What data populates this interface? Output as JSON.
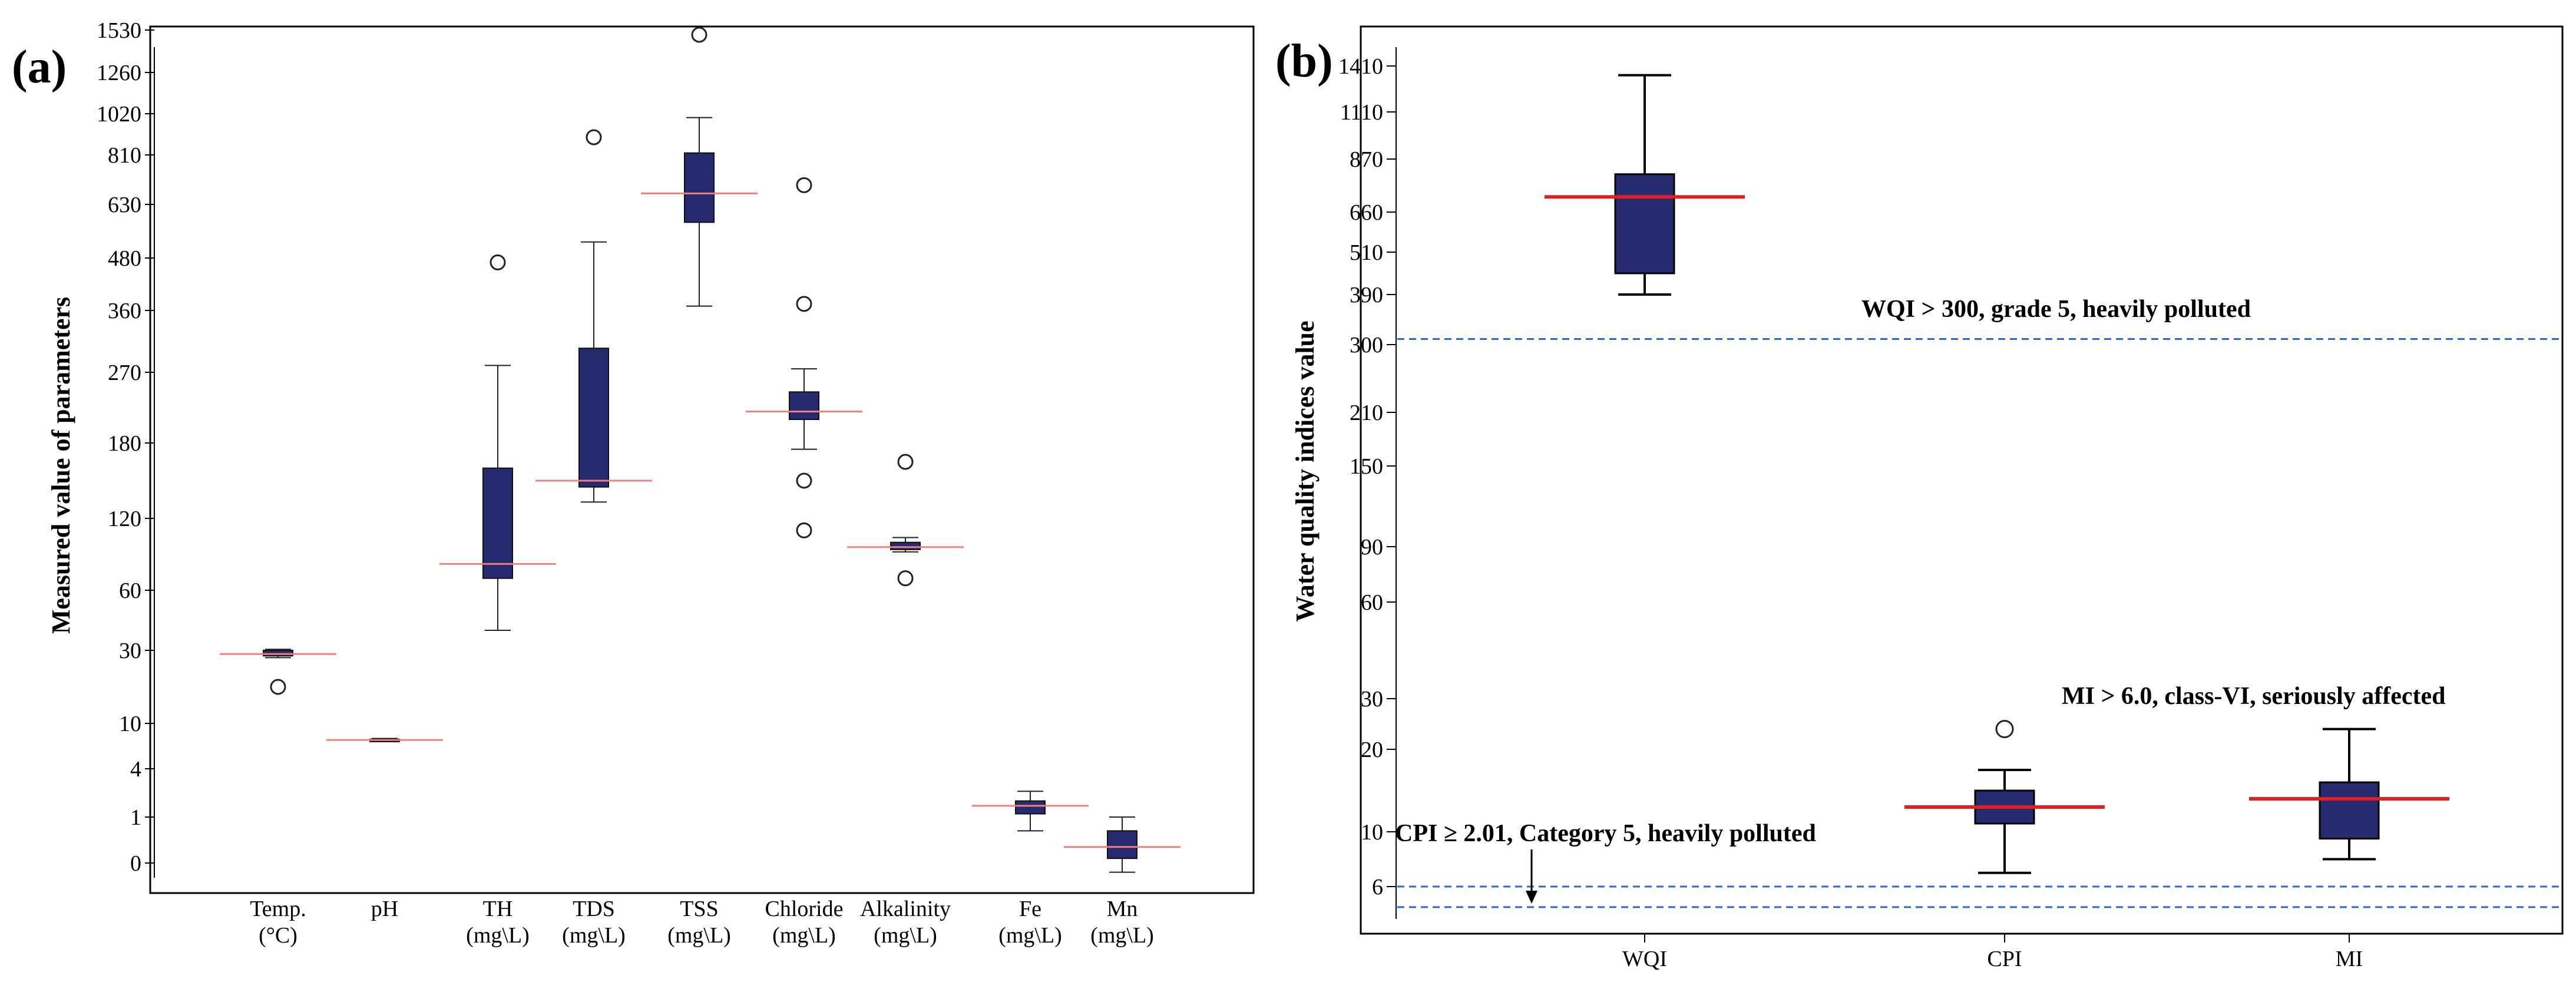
{
  "chart_data": [
    {
      "panel_label": "(a)",
      "type": "box",
      "ylabel": "Measured value of parameters",
      "y_ticks": [
        "0",
        "1",
        "4",
        "10",
        "30",
        "60",
        "120",
        "180",
        "270",
        "360",
        "480",
        "630",
        "810",
        "1020",
        "1260",
        "1530"
      ],
      "categories": [
        {
          "name": "Temp.",
          "unit": "(°C)",
          "min": 28,
          "q1": 28.5,
          "median": 29,
          "q3": 30,
          "max": 30.5,
          "outliers": [
            20
          ]
        },
        {
          "name": "pH",
          "unit": "",
          "min": 7.6,
          "q1": 7.7,
          "median": 7.8,
          "q3": 7.9,
          "max": 8.0,
          "outliers": []
        },
        {
          "name": "TH",
          "unit": "(mg\\L)",
          "min": 40,
          "q1": 70,
          "median": 82,
          "q3": 160,
          "max": 280,
          "outliers": [
            470
          ]
        },
        {
          "name": "TDS",
          "unit": "(mg\\L)",
          "min": 133,
          "q1": 145,
          "median": 150,
          "q3": 305,
          "max": 525,
          "outliers": [
            900
          ]
        },
        {
          "name": "TSS",
          "unit": "(mg\\L)",
          "min": 370,
          "q1": 580,
          "median": 670,
          "q3": 820,
          "max": 1000,
          "outliers": [
            1500
          ]
        },
        {
          "name": "Chloride",
          "unit": "(mg\\L)",
          "min": 175,
          "q1": 210,
          "median": 220,
          "q3": 245,
          "max": 275,
          "outliers": [
            110,
            150,
            375,
            700
          ]
        },
        {
          "name": "Alkalinity",
          "unit": "(mg\\L)",
          "min": 92,
          "q1": 94,
          "median": 96,
          "q3": 100,
          "max": 104,
          "outliers": [
            70,
            165
          ]
        },
        {
          "name": "Fe",
          "unit": "(mg\\L)",
          "min": 0.7,
          "q1": 1.2,
          "median": 1.7,
          "q3": 2.0,
          "max": 2.6,
          "outliers": []
        },
        {
          "name": "Mn",
          "unit": "(mg\\L)",
          "min": -0.2,
          "q1": 0.1,
          "median": 0.35,
          "q3": 0.7,
          "max": 1.0,
          "outliers": []
        }
      ]
    },
    {
      "panel_label": "(b)",
      "type": "box",
      "ylabel": "Water quality indices value",
      "y_ticks": [
        "6",
        "10",
        "20",
        "30",
        "60",
        "90",
        "150",
        "210",
        "300",
        "390",
        "510",
        "660",
        "870",
        "1110",
        "1410"
      ],
      "categories": [
        {
          "name": "WQI",
          "min": 390,
          "q1": 450,
          "median": 720,
          "q3": 810,
          "max": 1350,
          "outliers": []
        },
        {
          "name": "CPI",
          "min": 7,
          "q1": 11,
          "median": 13,
          "q3": 15,
          "max": 17.5,
          "outliers": [
            24
          ]
        },
        {
          "name": "MI",
          "min": 8,
          "q1": 9.5,
          "median": 14,
          "q3": 16,
          "max": 24,
          "outliers": []
        }
      ],
      "reference_lines": [
        {
          "value": 310,
          "label": "WQI > 300, grade 5, heavily polluted"
        },
        {
          "value": 6,
          "label": ""
        },
        {
          "value": 4.5,
          "label": ""
        }
      ],
      "annotations": [
        "WQI > 300, grade 5, heavily polluted",
        "MI > 6.0, class-VI, seriously affected",
        "CPI ≥ 2.01, Category 5, heavily polluted"
      ]
    }
  ],
  "colors": {
    "box_fill": "#262a6e",
    "median_a": "#f08080",
    "median_b": "#e02020",
    "ref_line": "#2a6ad0"
  }
}
